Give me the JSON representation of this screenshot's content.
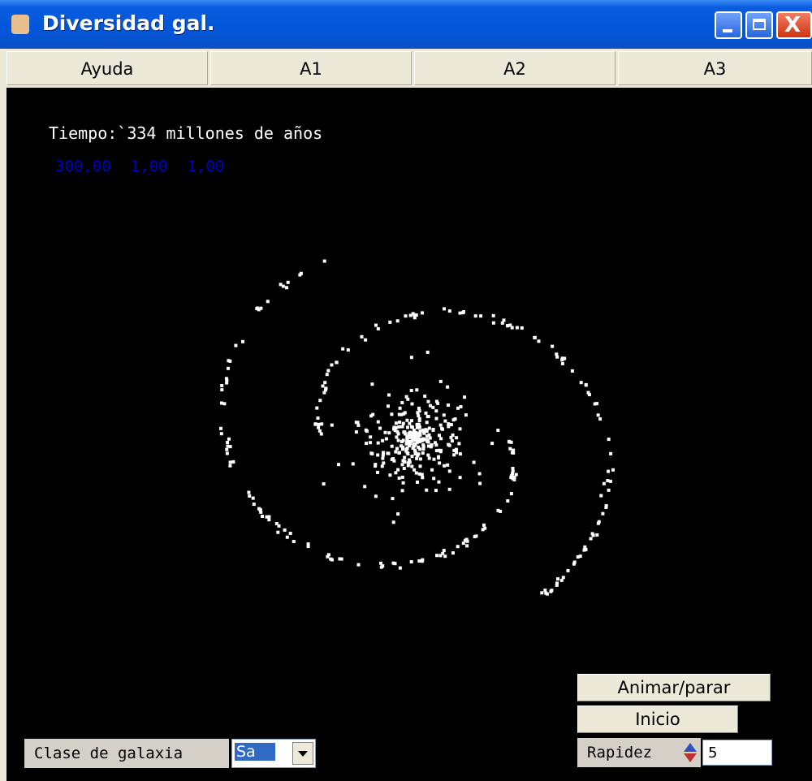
{
  "window": {
    "title": "Diversidad gal."
  },
  "menu": {
    "items": [
      "Ayuda",
      "A1",
      "A2",
      "A3"
    ]
  },
  "simulation": {
    "time_label": "Tiempo:`334 millones de años",
    "params": [
      "300,00",
      "1,00",
      "1,00"
    ]
  },
  "controls": {
    "animate": "Animar/parar",
    "reset": "Inicio",
    "speed_label": "Rapidez",
    "speed_value": "5",
    "galaxy_class_label": "Clase de galaxia",
    "galaxy_class_value": "Sa"
  }
}
